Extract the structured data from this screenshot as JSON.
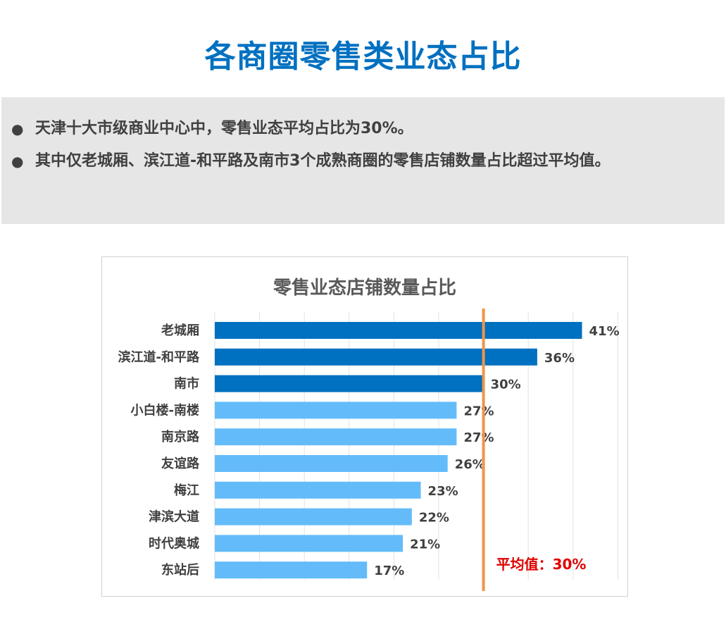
{
  "page": {
    "title": "各商圈零售类业态占比"
  },
  "summary": {
    "bullets": [
      "天津十大市级商业中心中，零售业态平均占比为30%。",
      "其中仅老城厢、滨江道-和平路及南市3个成熟商圈的零售店铺数量占比超过平均值。"
    ]
  },
  "chart_data": {
    "type": "bar",
    "orientation": "horizontal",
    "title": "零售业态店铺数量占比",
    "categories": [
      "老城厢",
      "滨江道-和平路",
      "南市",
      "小白楼-南楼",
      "南京路",
      "友谊路",
      "梅江",
      "津滨大道",
      "时代奥城",
      "东站后"
    ],
    "values": [
      41,
      36,
      30,
      27,
      27,
      26,
      23,
      22,
      21,
      17
    ],
    "value_labels": [
      "41%",
      "36%",
      "30%",
      "27%",
      "27%",
      "26%",
      "23%",
      "22%",
      "21%",
      "17%"
    ],
    "value_unit": "%",
    "xlim": [
      0,
      45
    ],
    "grid": true,
    "legend": "none",
    "highlight_count": 3,
    "colors": {
      "highlight": "#0070c0",
      "normal": "#63bcf9",
      "average_line": "#f0954a",
      "average_label": "#e00000"
    },
    "average": {
      "value": 30,
      "label": "平均值：30%"
    }
  }
}
